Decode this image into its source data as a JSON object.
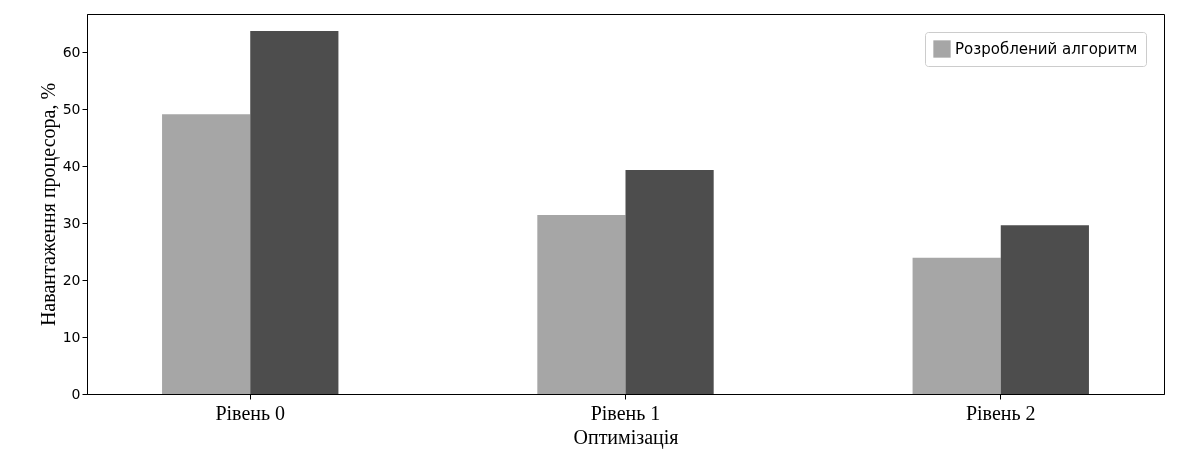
{
  "chart_data": {
    "type": "bar",
    "xlabel": "Оптимізація",
    "ylabel": "Навантаження процесора, %",
    "categories": [
      "Рівень 0",
      "Рівень 1",
      "Рівень 2"
    ],
    "series": [
      {
        "name": "Розроблений алгоритм",
        "color": "#a6a6a6",
        "values": [
          49.1,
          31.4,
          23.9
        ]
      },
      {
        "color": "#4d4d4d",
        "values": [
          63.7,
          39.3,
          29.6
        ]
      }
    ],
    "ylim": [
      0,
      66.7
    ],
    "yticks": [
      0,
      10,
      20,
      30,
      40,
      50,
      60
    ],
    "grid": false,
    "legend": "top right"
  }
}
